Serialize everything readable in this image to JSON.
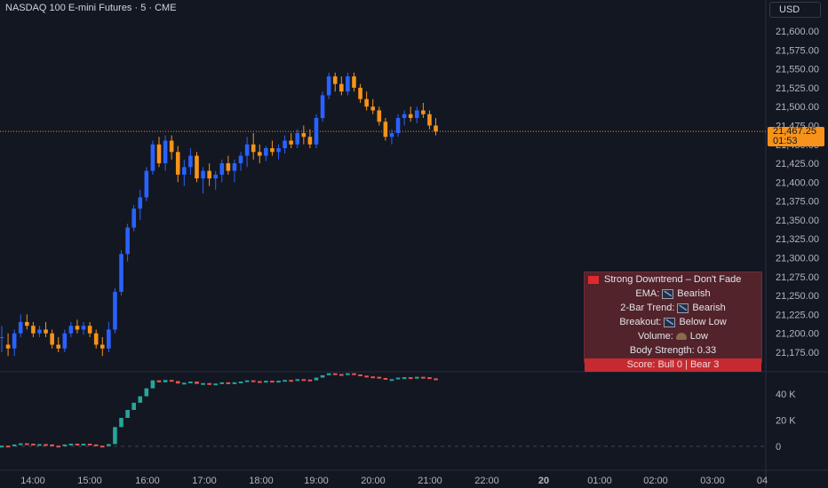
{
  "header": {
    "symbol_title": "NASDAQ 100 E-mini Futures · 5 · CME",
    "currency": "USD"
  },
  "price_axis": {
    "labels": [
      "21,600.00",
      "21,575.00",
      "21,550.00",
      "21,525.00",
      "21,500.00",
      "21,475.00",
      "21,450.00",
      "21,425.00",
      "21,400.00",
      "21,375.00",
      "21,350.00",
      "21,325.00",
      "21,300.00",
      "21,275.00",
      "21,250.00",
      "21,225.00",
      "21,200.00",
      "21,175.00"
    ],
    "current_price": "21,467.25",
    "countdown": "01:53"
  },
  "volume_axis": {
    "labels": [
      "40 K",
      "20 K",
      "0"
    ]
  },
  "time_axis": {
    "labels": [
      "14:00",
      "15:00",
      "16:00",
      "17:00",
      "18:00",
      "19:00",
      "20:00",
      "21:00",
      "22:00",
      "20",
      "01:00",
      "02:00",
      "03:00",
      "04"
    ]
  },
  "panel": {
    "title": "Strong Downtrend – Don't Fade",
    "ema_label": "EMA:",
    "ema_value": "Bearish",
    "trend_label": "2-Bar Trend:",
    "trend_value": "Bearish",
    "breakout_label": "Breakout:",
    "breakout_value": "Below Low",
    "volume_label": "Volume:",
    "volume_value": "Low",
    "body_strength": "Body Strength: 0.33",
    "score": "Score: Bull 0 | Bear 3"
  },
  "colors": {
    "bull": "#2962ff",
    "bear": "#f7931a",
    "osc_up": "#26a69a",
    "osc_down": "#ef5350",
    "price_line": "#f7931a"
  },
  "chart_data": {
    "type": "candlestick",
    "price_range": [
      21165,
      21620
    ],
    "candles": [
      [
        21195,
        21210,
        21175,
        21195
      ],
      [
        21185,
        21200,
        21170,
        21180
      ],
      [
        21180,
        21205,
        21170,
        21200
      ],
      [
        21200,
        21225,
        21195,
        21215
      ],
      [
        21215,
        21225,
        21205,
        21210
      ],
      [
        21210,
        21215,
        21195,
        21200
      ],
      [
        21200,
        21210,
        21195,
        21205
      ],
      [
        21205,
        21215,
        21195,
        21200
      ],
      [
        21200,
        21205,
        21180,
        21185
      ],
      [
        21185,
        21195,
        21175,
        21180
      ],
      [
        21180,
        21205,
        21175,
        21200
      ],
      [
        21200,
        21215,
        21195,
        21210
      ],
      [
        21210,
        21218,
        21200,
        21205
      ],
      [
        21205,
        21215,
        21198,
        21210
      ],
      [
        21210,
        21215,
        21195,
        21200
      ],
      [
        21200,
        21205,
        21180,
        21185
      ],
      [
        21185,
        21195,
        21170,
        21180
      ],
      [
        21180,
        21215,
        21175,
        21205
      ],
      [
        21205,
        21260,
        21200,
        21255
      ],
      [
        21255,
        21310,
        21250,
        21305
      ],
      [
        21305,
        21345,
        21295,
        21340
      ],
      [
        21340,
        21370,
        21335,
        21365
      ],
      [
        21365,
        21390,
        21350,
        21380
      ],
      [
        21380,
        21420,
        21375,
        21415
      ],
      [
        21415,
        21455,
        21410,
        21450
      ],
      [
        21450,
        21460,
        21420,
        21425
      ],
      [
        21425,
        21462,
        21415,
        21455
      ],
      [
        21455,
        21462,
        21430,
        21440
      ],
      [
        21440,
        21448,
        21400,
        21410
      ],
      [
        21410,
        21430,
        21395,
        21420
      ],
      [
        21420,
        21445,
        21410,
        21435
      ],
      [
        21435,
        21440,
        21400,
        21405
      ],
      [
        21405,
        21420,
        21385,
        21415
      ],
      [
        21415,
        21425,
        21395,
        21405
      ],
      [
        21405,
        21415,
        21390,
        21410
      ],
      [
        21410,
        21430,
        21400,
        21425
      ],
      [
        21425,
        21435,
        21410,
        21415
      ],
      [
        21415,
        21430,
        21400,
        21425
      ],
      [
        21425,
        21440,
        21415,
        21435
      ],
      [
        21435,
        21460,
        21420,
        21450
      ],
      [
        21450,
        21465,
        21430,
        21440
      ],
      [
        21440,
        21450,
        21425,
        21435
      ],
      [
        21435,
        21448,
        21428,
        21445
      ],
      [
        21445,
        21455,
        21435,
        21440
      ],
      [
        21440,
        21450,
        21430,
        21445
      ],
      [
        21445,
        21462,
        21438,
        21455
      ],
      [
        21455,
        21465,
        21445,
        21450
      ],
      [
        21450,
        21470,
        21445,
        21465
      ],
      [
        21465,
        21475,
        21450,
        21460
      ],
      [
        21460,
        21470,
        21445,
        21450
      ],
      [
        21450,
        21490,
        21445,
        21485
      ],
      [
        21485,
        21520,
        21480,
        21515
      ],
      [
        21515,
        21545,
        21510,
        21540
      ],
      [
        21540,
        21545,
        21520,
        21530
      ],
      [
        21530,
        21540,
        21515,
        21520
      ],
      [
        21520,
        21545,
        21515,
        21540
      ],
      [
        21540,
        21545,
        21520,
        21525
      ],
      [
        21525,
        21530,
        21505,
        21510
      ],
      [
        21510,
        21520,
        21495,
        21500
      ],
      [
        21500,
        21510,
        21490,
        21495
      ],
      [
        21495,
        21500,
        21475,
        21480
      ],
      [
        21480,
        21485,
        21455,
        21460
      ],
      [
        21460,
        21470,
        21450,
        21465
      ],
      [
        21465,
        21490,
        21460,
        21485
      ],
      [
        21485,
        21495,
        21475,
        21490
      ],
      [
        21490,
        21500,
        21480,
        21485
      ],
      [
        21485,
        21500,
        21478,
        21495
      ],
      [
        21495,
        21505,
        21485,
        21490
      ],
      [
        21490,
        21495,
        21470,
        21475
      ],
      [
        21475,
        21485,
        21462,
        21467.25
      ]
    ]
  }
}
